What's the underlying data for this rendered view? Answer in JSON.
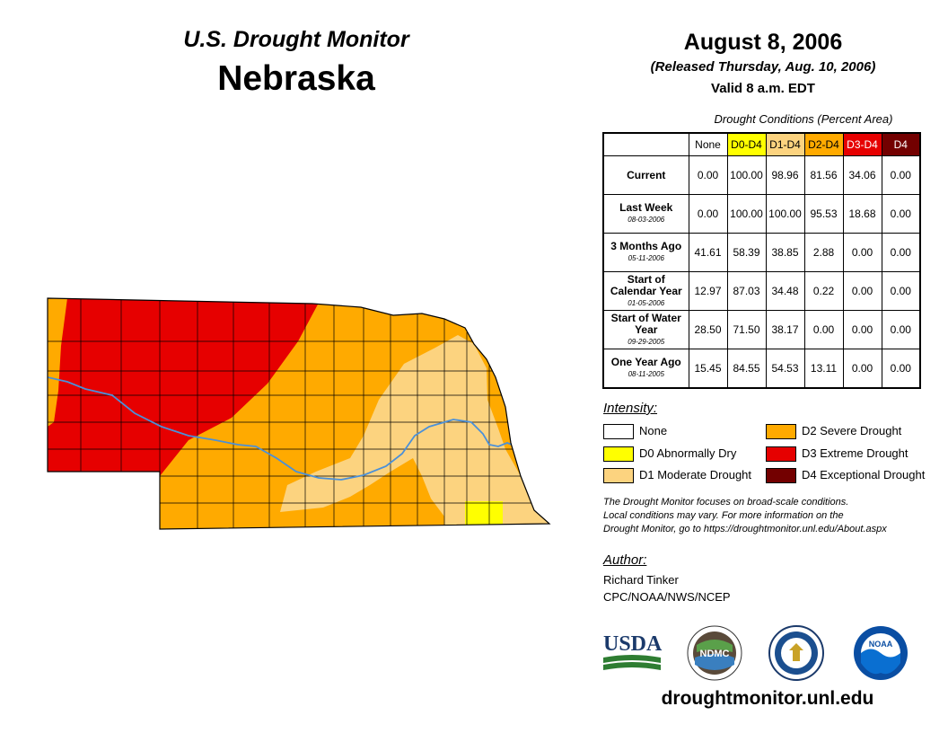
{
  "header": {
    "subtitle": "U.S. Drought Monitor",
    "state": "Nebraska",
    "date": "August 8, 2006",
    "released": "(Released Thursday, Aug. 10, 2006)",
    "valid": "Valid 8 a.m. EDT"
  },
  "table": {
    "caption": "Drought Conditions (Percent Area)",
    "columns": [
      {
        "label": "None",
        "color": "#ffffff",
        "text_color": "#000000"
      },
      {
        "label": "D0-D4",
        "color": "#ffff00",
        "text_color": "#000000"
      },
      {
        "label": "D1-D4",
        "color": "#fcd37f",
        "text_color": "#000000"
      },
      {
        "label": "D2-D4",
        "color": "#ffaa00",
        "text_color": "#000000"
      },
      {
        "label": "D3-D4",
        "color": "#e60000",
        "text_color": "#ffffff"
      },
      {
        "label": "D4",
        "color": "#730000",
        "text_color": "#ffffff"
      }
    ],
    "rows": [
      {
        "label": "Current",
        "date": "",
        "values": [
          "0.00",
          "100.00",
          "98.96",
          "81.56",
          "34.06",
          "0.00"
        ]
      },
      {
        "label": "Last Week",
        "date": "08-03-2006",
        "values": [
          "0.00",
          "100.00",
          "100.00",
          "95.53",
          "18.68",
          "0.00"
        ]
      },
      {
        "label": "3 Months Ago",
        "date": "05-11-2006",
        "values": [
          "41.61",
          "58.39",
          "38.85",
          "2.88",
          "0.00",
          "0.00"
        ]
      },
      {
        "label": "Start of Calendar Year",
        "date": "01-05-2006",
        "values": [
          "12.97",
          "87.03",
          "34.48",
          "0.22",
          "0.00",
          "0.00"
        ]
      },
      {
        "label": "Start of Water Year",
        "date": "09-29-2005",
        "values": [
          "28.50",
          "71.50",
          "38.17",
          "0.00",
          "0.00",
          "0.00"
        ]
      },
      {
        "label": "One Year Ago",
        "date": "08-11-2005",
        "values": [
          "15.45",
          "84.55",
          "54.53",
          "13.11",
          "0.00",
          "0.00"
        ]
      }
    ]
  },
  "legend": {
    "title": "Intensity:",
    "items": [
      {
        "label": "None",
        "color": "#ffffff"
      },
      {
        "label": "D0 Abnormally Dry",
        "color": "#ffff00"
      },
      {
        "label": "D1 Moderate Drought",
        "color": "#fcd37f"
      },
      {
        "label": "D2 Severe Drought",
        "color": "#ffaa00"
      },
      {
        "label": "D3 Extreme Drought",
        "color": "#e60000"
      },
      {
        "label": "D4 Exceptional Drought",
        "color": "#730000"
      }
    ]
  },
  "note": {
    "line1": "The Drought Monitor focuses on broad-scale conditions.",
    "line2": "Local conditions may vary. For more information on the",
    "line3": "Drought Monitor, go to https://droughtmonitor.unl.edu/About.aspx"
  },
  "author": {
    "title": "Author:",
    "name": "Richard Tinker",
    "org": "CPC/NOAA/NWS/NCEP"
  },
  "logos": {
    "usda": "USDA",
    "ndmc": "NDMC",
    "noaa": "NOAA"
  },
  "website": "droughtmonitor.unl.edu",
  "map": {
    "river_color": "#4a90d9",
    "county_line_color": "#000000"
  }
}
